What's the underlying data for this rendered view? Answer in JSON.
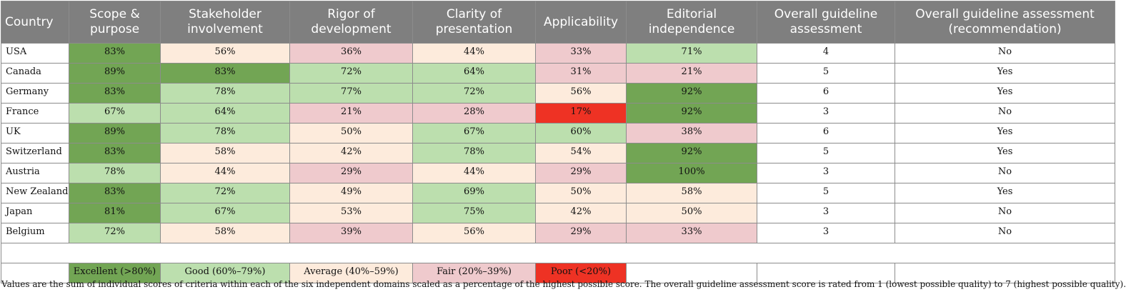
{
  "headers": [
    "Country",
    "Scope & purpose",
    "Stakeholder involvement",
    "Rigor of development",
    "Clarity of presentation",
    "Applicability",
    "Editorial independence",
    "Overall guideline assessment",
    "Overall guideline assessment (recommendation)"
  ],
  "rows": [
    {
      "country": "USA",
      "scope": "83%",
      "stakeholder": "56%",
      "rigor": "36%",
      "clarity": "44%",
      "applicability": "33%",
      "editorial": "71%",
      "overall": "4",
      "recommendation": "No"
    },
    {
      "country": "Canada",
      "scope": "89%",
      "stakeholder": "83%",
      "rigor": "72%",
      "clarity": "64%",
      "applicability": "31%",
      "editorial": "21%",
      "overall": "5",
      "recommendation": "Yes"
    },
    {
      "country": "Germany",
      "scope": "83%",
      "stakeholder": "78%",
      "rigor": "77%",
      "clarity": "72%",
      "applicability": "56%",
      "editorial": "92%",
      "overall": "6",
      "recommendation": "Yes"
    },
    {
      "country": "France",
      "scope": "67%",
      "stakeholder": "64%",
      "rigor": "21%",
      "clarity": "28%",
      "applicability": "17%",
      "editorial": "92%",
      "overall": "3",
      "recommendation": "No"
    },
    {
      "country": "UK",
      "scope": "89%",
      "stakeholder": "78%",
      "rigor": "50%",
      "clarity": "67%",
      "applicability": "60%",
      "editorial": "38%",
      "overall": "6",
      "recommendation": "Yes"
    },
    {
      "country": "Switzerland",
      "scope": "83%",
      "stakeholder": "58%",
      "rigor": "42%",
      "clarity": "78%",
      "applicability": "54%",
      "editorial": "92%",
      "overall": "5",
      "recommendation": "Yes"
    },
    {
      "country": "Austria",
      "scope": "78%",
      "stakeholder": "44%",
      "rigor": "29%",
      "clarity": "44%",
      "applicability": "29%",
      "editorial": "100%",
      "overall": "3",
      "recommendation": "No"
    },
    {
      "country": "New Zealand",
      "scope": "83%",
      "stakeholder": "72%",
      "rigor": "49%",
      "clarity": "69%",
      "applicability": "50%",
      "editorial": "58%",
      "overall": "5",
      "recommendation": "Yes"
    },
    {
      "country": "Japan",
      "scope": "81%",
      "stakeholder": "67%",
      "rigor": "53%",
      "clarity": "75%",
      "applicability": "42%",
      "editorial": "50%",
      "overall": "3",
      "recommendation": "No"
    },
    {
      "country": "Belgium",
      "scope": "72%",
      "stakeholder": "58%",
      "rigor": "39%",
      "clarity": "56%",
      "applicability": "29%",
      "editorial": "33%",
      "overall": "3",
      "recommendation": "No"
    }
  ],
  "legend": {
    "excellent": "Excellent (>80%)",
    "good": "Good (60%–79%)",
    "average": "Average (40%–59%)",
    "fair": "Fair (20%–39%)",
    "poor": "Poor (<20%)"
  },
  "colors": {
    "header_bg": "#7f7f7f",
    "excellent": "#72a554",
    "good": "#bcdfae",
    "average": "#fdebdc",
    "fair": "#efcacd",
    "poor": "#ee3224"
  },
  "footnote": "Values are the sum of individual scores of criteria within each of the six independent domains scaled as a percentage of the highest possible score. The overall guideline assessment score is rated from 1 (lowest possible quality) to 7 (highest possible quality)."
}
